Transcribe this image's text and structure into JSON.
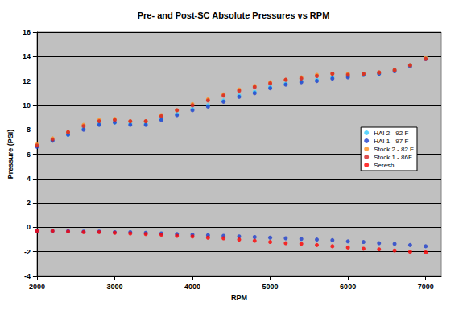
{
  "chart_data": {
    "type": "scatter",
    "title": "Pre- and Post-SC Absolute Pressures vs RPM",
    "x_label": "RPM",
    "y_label": "Pressure (PSI)",
    "xlim": [
      2000,
      7200
    ],
    "xticks": [
      2000,
      3000,
      4000,
      5000,
      6000,
      7000
    ],
    "ylim": [
      -4,
      16
    ],
    "yticks": [
      -4,
      -2,
      0,
      2,
      4,
      6,
      8,
      10,
      12,
      14,
      16
    ],
    "grid": true,
    "legend": "right",
    "series": [
      {
        "name": "HAI 2 - 92 F",
        "color": "#33ccff",
        "marker": "circle",
        "x": [
          2000,
          2200,
          2400,
          2600,
          2800,
          3000,
          3200,
          3400,
          3600,
          3800,
          4000,
          4200,
          4400,
          4600,
          4800,
          5000,
          5200,
          5400,
          5600,
          5800,
          6000,
          6200,
          6400,
          6600,
          6800,
          7000
        ],
        "values": [
          6.7,
          7.1,
          7.6,
          8.1,
          8.5,
          8.6,
          8.5,
          8.5,
          8.9,
          9.3,
          9.7,
          10.0,
          10.4,
          10.8,
          11.1,
          11.5,
          11.8,
          12.0,
          12.1,
          12.3,
          12.4,
          12.5,
          12.6,
          12.9,
          13.3,
          13.9
        ]
      },
      {
        "name": "HAI 1 - 97 F",
        "color": "#1f3fcc",
        "marker": "circle",
        "x": [
          2000,
          2200,
          2400,
          2600,
          2800,
          3000,
          3200,
          3400,
          3600,
          3800,
          4000,
          4200,
          4400,
          4600,
          4800,
          5000,
          5200,
          5400,
          5600,
          5800,
          6000,
          6200,
          6400,
          6600,
          6800,
          7000,
          2000,
          2200,
          2400,
          2600,
          2800,
          3000,
          3200,
          3400,
          3600,
          3800,
          4000,
          4200,
          4400,
          4600,
          4800,
          5000,
          5200,
          5400,
          5600,
          5800,
          6000,
          6200,
          6400,
          6600,
          6800,
          7000
        ],
        "values": [
          6.6,
          7.1,
          7.6,
          8.0,
          8.4,
          8.6,
          8.4,
          8.4,
          8.8,
          9.2,
          9.6,
          9.9,
          10.3,
          10.7,
          11.0,
          11.4,
          11.7,
          11.9,
          12.0,
          12.2,
          12.3,
          12.5,
          12.6,
          12.8,
          13.2,
          13.8,
          -0.3,
          -0.3,
          -0.3,
          -0.35,
          -0.35,
          -0.4,
          -0.4,
          -0.45,
          -0.5,
          -0.55,
          -0.6,
          -0.65,
          -0.7,
          -0.75,
          -0.8,
          -0.85,
          -0.9,
          -0.95,
          -1.0,
          -1.05,
          -1.15,
          -1.2,
          -1.3,
          -1.35,
          -1.45,
          -1.55
        ]
      },
      {
        "name": "Stock 2 - 82 F",
        "color": "#ff8c1a",
        "marker": "circle",
        "x": [
          2000,
          2200,
          2400,
          2600,
          2800,
          3000,
          3200,
          3400,
          3600,
          3800,
          4000,
          4200,
          4400,
          4600,
          4800,
          5000,
          5200,
          5400,
          5600,
          5800,
          6000,
          6200,
          6400,
          6600,
          6800,
          7000
        ],
        "values": [
          6.8,
          7.3,
          7.8,
          8.4,
          8.8,
          8.9,
          8.7,
          8.7,
          9.2,
          9.6,
          10.1,
          10.5,
          10.9,
          11.3,
          11.6,
          11.9,
          12.1,
          12.3,
          12.5,
          12.6,
          12.6,
          12.6,
          12.7,
          12.9,
          13.3,
          13.9
        ]
      },
      {
        "name": "Stock 1 - 86F",
        "color": "#d42020",
        "marker": "circle",
        "x": [
          2000,
          2200,
          2400,
          2600,
          2800,
          3000,
          3200,
          3400,
          3600,
          3800,
          4000,
          4200,
          4400,
          4600,
          4800,
          5000,
          5200,
          5400,
          5600,
          5800,
          6000,
          6200,
          6400,
          6600,
          6800,
          7000
        ],
        "values": [
          6.7,
          7.2,
          7.8,
          8.3,
          8.7,
          8.8,
          8.7,
          8.7,
          9.1,
          9.6,
          10.0,
          10.4,
          10.8,
          11.2,
          11.5,
          11.8,
          12.1,
          12.2,
          12.4,
          12.6,
          12.5,
          12.6,
          12.7,
          12.9,
          13.3,
          13.8
        ]
      },
      {
        "name": "Seresh",
        "color": "#ff0000",
        "marker": "circle",
        "x": [
          2000,
          2200,
          2400,
          2600,
          2800,
          3000,
          3200,
          3400,
          3600,
          3800,
          4000,
          4200,
          4400,
          4600,
          4800,
          5000,
          5200,
          5400,
          5600,
          5800,
          6000,
          6200,
          6400,
          6600,
          6800,
          7000
        ],
        "values": [
          -0.3,
          -0.3,
          -0.35,
          -0.4,
          -0.4,
          -0.45,
          -0.5,
          -0.55,
          -0.6,
          -0.7,
          -0.75,
          -0.85,
          -0.9,
          -1.0,
          -1.1,
          -1.2,
          -1.3,
          -1.35,
          -1.45,
          -1.55,
          -1.65,
          -1.75,
          -1.8,
          -1.9,
          -2.0,
          -2.05
        ]
      }
    ]
  }
}
